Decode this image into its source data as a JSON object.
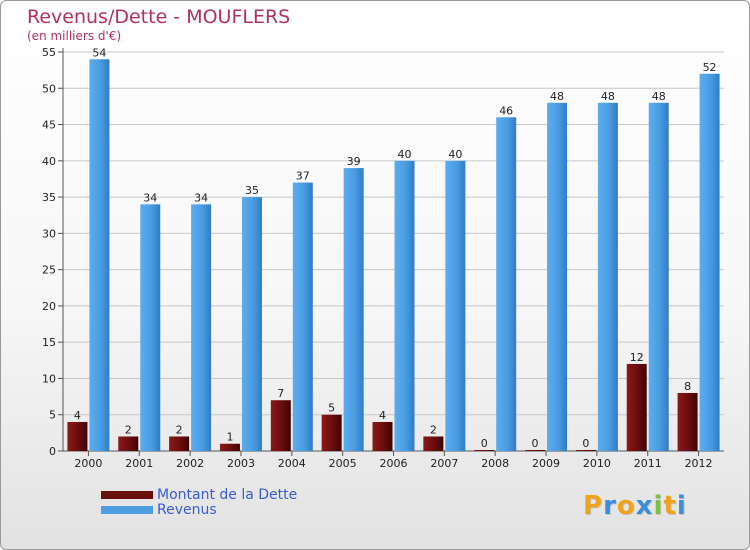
{
  "title": "Revenus/Dette - MOUFLERS",
  "subtitle": "(en milliers d'€)",
  "legend": [
    {
      "name": "Montant de la Dette",
      "color": "#6b0e0e"
    },
    {
      "name": "Revenus",
      "color": "#4f9ee2"
    }
  ],
  "logo": {
    "text": "Proxiti",
    "letters": [
      "P",
      "r",
      "o",
      "x",
      "i",
      "t",
      "i"
    ],
    "colors": [
      "#f0a21a",
      "#3a8fd8",
      "#f0a21a",
      "#3a8fd8",
      "#7cc242",
      "#f0a21a",
      "#3a8fd8"
    ]
  },
  "colors": {
    "debt": "#7a1010",
    "revenue": "#4fa0e4",
    "grid": "#c8c8c8",
    "title": "#b0325a",
    "legend_text": "#3a5ccf"
  },
  "chart_data": {
    "type": "bar",
    "title": "Revenus/Dette - MOUFLERS",
    "subtitle": "(en milliers d'€)",
    "categories": [
      "2000",
      "2001",
      "2002",
      "2003",
      "2004",
      "2005",
      "2006",
      "2007",
      "2008",
      "2009",
      "2010",
      "2011",
      "2012"
    ],
    "series": [
      {
        "name": "Montant de la Dette",
        "values": [
          4,
          2,
          2,
          1,
          7,
          5,
          4,
          2,
          0,
          0,
          0,
          12,
          8
        ]
      },
      {
        "name": "Revenus",
        "values": [
          54,
          34,
          34,
          35,
          37,
          39,
          40,
          40,
          46,
          48,
          48,
          48,
          52
        ]
      }
    ],
    "yticks": [
      0,
      5,
      10,
      15,
      20,
      25,
      30,
      35,
      40,
      45,
      50,
      55
    ],
    "ylim": [
      0,
      55
    ],
    "grid": true,
    "legend_position": "bottom-left",
    "xlabel": "",
    "ylabel": ""
  }
}
